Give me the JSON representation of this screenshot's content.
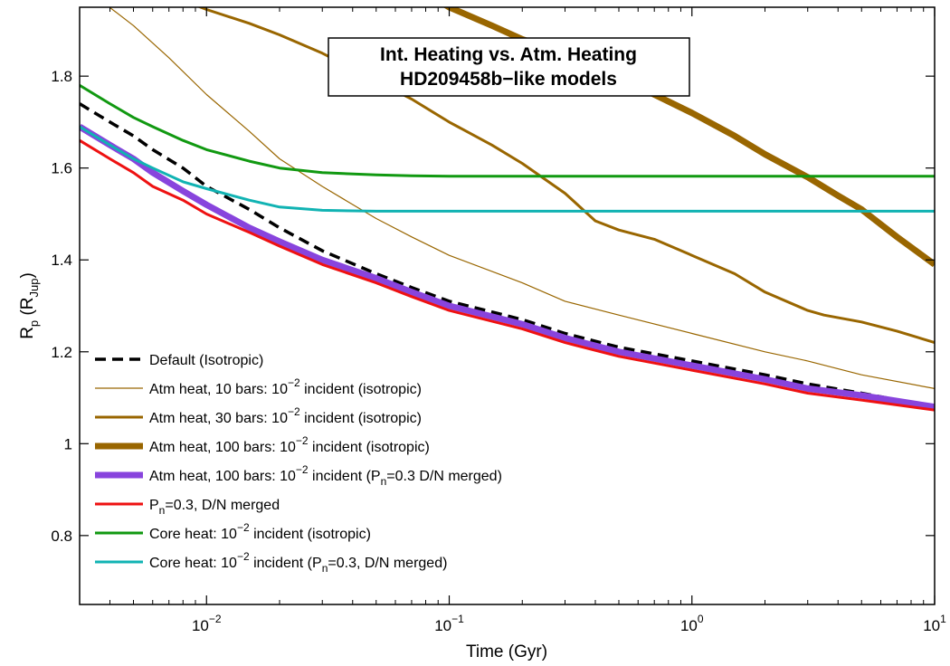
{
  "chart_data": {
    "type": "line",
    "title_lines": [
      "Int. Heating vs. Atm. Heating",
      "HD209458b−like models"
    ],
    "xlabel": "Time (Gyr)",
    "ylabel": {
      "main": "R",
      "main_sub": "p",
      "paren_open": " (R",
      "unit_sub": "Jup",
      "paren_close": ")"
    },
    "x_scale": "log",
    "xlim": [
      0.003,
      10
    ],
    "ylim": [
      0.65,
      1.95
    ],
    "x_ticks": [
      {
        "value": 0.01,
        "base": "10",
        "exp": "−2"
      },
      {
        "value": 0.1,
        "base": "10",
        "exp": "−1"
      },
      {
        "value": 1,
        "base": "10",
        "exp": "0"
      },
      {
        "value": 10,
        "base": "10",
        "exp": "1"
      }
    ],
    "y_ticks": [
      {
        "value": 0.8,
        "label": "0.8"
      },
      {
        "value": 1.0,
        "label": "1"
      },
      {
        "value": 1.2,
        "label": "1.2"
      },
      {
        "value": 1.4,
        "label": "1.4"
      },
      {
        "value": 1.6,
        "label": "1.6"
      },
      {
        "value": 1.8,
        "label": "1.8"
      }
    ],
    "grid": false,
    "legend_position": "bottom-left",
    "series": [
      {
        "legend": {
          "pre": "Default (Isotropic)",
          "sub": "",
          "mid": "",
          "sup": "",
          "post": ""
        },
        "color": "#000000",
        "width": 3.5,
        "dashed": true,
        "x": [
          0.003,
          0.004,
          0.005,
          0.006,
          0.008,
          0.01,
          0.015,
          0.02,
          0.03,
          0.05,
          0.07,
          0.1,
          0.2,
          0.3,
          0.5,
          1,
          2,
          3,
          5,
          10
        ],
        "y": [
          1.74,
          1.7,
          1.67,
          1.64,
          1.6,
          1.56,
          1.51,
          1.47,
          1.42,
          1.37,
          1.34,
          1.31,
          1.27,
          1.24,
          1.21,
          1.18,
          1.15,
          1.13,
          1.11,
          1.08
        ]
      },
      {
        "legend": {
          "pre": "Atm heat, 10 bars: 10",
          "sub": "",
          "mid": "",
          "sup": "−2",
          "post": " incident (isotropic)"
        },
        "color": "#996600",
        "width": 1.2,
        "dashed": false,
        "x": [
          0.003,
          0.005,
          0.007,
          0.01,
          0.015,
          0.02,
          0.03,
          0.05,
          0.07,
          0.1,
          0.2,
          0.3,
          0.5,
          1,
          2,
          3,
          5,
          10
        ],
        "y": [
          2.0,
          1.91,
          1.84,
          1.76,
          1.68,
          1.62,
          1.56,
          1.49,
          1.45,
          1.41,
          1.35,
          1.31,
          1.28,
          1.24,
          1.2,
          1.18,
          1.15,
          1.12
        ]
      },
      {
        "legend": {
          "pre": "Atm heat, 30 bars: 10",
          "sub": "",
          "mid": "",
          "sup": "−2",
          "post": " incident (isotropic)"
        },
        "color": "#996600",
        "width": 3,
        "dashed": false,
        "x": [
          0.0045,
          0.006,
          0.008,
          0.01,
          0.015,
          0.02,
          0.03,
          0.05,
          0.07,
          0.1,
          0.15,
          0.2,
          0.3,
          0.4,
          0.5,
          0.7,
          1,
          1.5,
          2,
          3,
          3.5,
          5,
          7,
          10
        ],
        "y": [
          2.0,
          1.99,
          1.965,
          1.945,
          1.915,
          1.89,
          1.85,
          1.79,
          1.75,
          1.7,
          1.65,
          1.61,
          1.545,
          1.485,
          1.465,
          1.445,
          1.41,
          1.37,
          1.33,
          1.29,
          1.28,
          1.265,
          1.245,
          1.22
        ]
      },
      {
        "legend": {
          "pre": "Atm heat, 100 bars: 10",
          "sub": "",
          "mid": "",
          "sup": "−2",
          "post": " incident (isotropic)"
        },
        "color": "#996600",
        "width": 7,
        "dashed": false,
        "x": [
          0.07,
          0.1,
          0.15,
          0.2,
          0.3,
          0.5,
          0.7,
          1,
          1.5,
          2,
          3,
          4,
          5,
          7,
          10
        ],
        "y": [
          2.0,
          1.95,
          1.91,
          1.88,
          1.85,
          1.8,
          1.76,
          1.72,
          1.67,
          1.63,
          1.58,
          1.54,
          1.51,
          1.45,
          1.39
        ]
      },
      {
        "legend": {
          "pre": "Atm heat, 100 bars: 10",
          "sub": "",
          "mid": "",
          "sup": "−2",
          "post": " incident (P",
          "post_sub": "n",
          "post2": "=0.3 D/N merged)"
        },
        "color": "#8844dd",
        "width": 7,
        "dashed": false,
        "x": [
          0.003,
          0.004,
          0.005,
          0.006,
          0.008,
          0.01,
          0.015,
          0.02,
          0.03,
          0.05,
          0.07,
          0.1,
          0.2,
          0.3,
          0.5,
          1,
          2,
          3,
          5,
          10
        ],
        "y": [
          1.69,
          1.65,
          1.62,
          1.59,
          1.55,
          1.52,
          1.47,
          1.44,
          1.4,
          1.36,
          1.33,
          1.3,
          1.26,
          1.23,
          1.2,
          1.17,
          1.14,
          1.12,
          1.105,
          1.08
        ]
      },
      {
        "legend": {
          "pre": "P",
          "sub": "n",
          "mid": "=0.3, D/N merged",
          "sup": "",
          "post": ""
        },
        "color": "#ee1111",
        "width": 3,
        "dashed": false,
        "x": [
          0.003,
          0.004,
          0.005,
          0.006,
          0.008,
          0.01,
          0.015,
          0.02,
          0.03,
          0.05,
          0.07,
          0.1,
          0.2,
          0.3,
          0.5,
          1,
          2,
          3,
          5,
          10
        ],
        "y": [
          1.66,
          1.62,
          1.59,
          1.56,
          1.53,
          1.5,
          1.46,
          1.43,
          1.39,
          1.35,
          1.32,
          1.29,
          1.25,
          1.22,
          1.19,
          1.16,
          1.13,
          1.11,
          1.095,
          1.073
        ]
      },
      {
        "legend": {
          "pre": "Core heat: 10",
          "sub": "",
          "mid": "",
          "sup": "−2",
          "post": " incident (isotropic)"
        },
        "color": "#119911",
        "width": 3,
        "dashed": false,
        "x": [
          0.003,
          0.004,
          0.005,
          0.006,
          0.008,
          0.01,
          0.015,
          0.02,
          0.03,
          0.05,
          0.07,
          0.1,
          0.2,
          0.5,
          1,
          3,
          10
        ],
        "y": [
          1.78,
          1.74,
          1.71,
          1.69,
          1.66,
          1.64,
          1.615,
          1.6,
          1.59,
          1.585,
          1.583,
          1.582,
          1.582,
          1.582,
          1.582,
          1.582,
          1.582
        ]
      },
      {
        "legend": {
          "pre": "Core heat: 10",
          "sub": "",
          "mid": "",
          "sup": "−2",
          "post": " incident (P",
          "post_sub": "n",
          "post2": "=0.3, D/N merged)"
        },
        "color": "#11b3b3",
        "width": 3,
        "dashed": false,
        "x": [
          0.003,
          0.004,
          0.005,
          0.006,
          0.008,
          0.01,
          0.015,
          0.02,
          0.03,
          0.05,
          0.07,
          0.1,
          0.2,
          0.5,
          1,
          3,
          10
        ],
        "y": [
          1.69,
          1.65,
          1.62,
          1.6,
          1.57,
          1.555,
          1.53,
          1.515,
          1.508,
          1.506,
          1.506,
          1.506,
          1.506,
          1.506,
          1.506,
          1.506,
          1.506
        ]
      }
    ]
  }
}
